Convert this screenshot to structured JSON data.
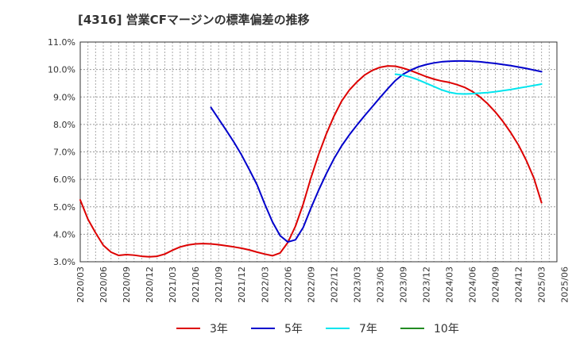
{
  "chart_data": {
    "type": "line",
    "title": "[4316]  営業CFマージンの標準偏差の推移",
    "xlabel": "",
    "ylabel": "",
    "ylim": [
      3.0,
      11.0
    ],
    "yticks": [
      3.0,
      4.0,
      5.0,
      6.0,
      7.0,
      8.0,
      9.0,
      10.0,
      11.0
    ],
    "ytick_labels": [
      "3.0%",
      "4.0%",
      "5.0%",
      "6.0%",
      "7.0%",
      "8.0%",
      "9.0%",
      "10.0%",
      "11.0%"
    ],
    "x_categories": [
      "2020/03",
      "2020/06",
      "2020/09",
      "2020/12",
      "2021/03",
      "2021/06",
      "2021/09",
      "2021/12",
      "2022/03",
      "2022/06",
      "2022/09",
      "2022/12",
      "2023/03",
      "2023/06",
      "2023/09",
      "2023/12",
      "2024/03",
      "2024/06",
      "2024/09",
      "2024/12",
      "2025/03",
      "2025/06"
    ],
    "grid": true,
    "legend_position": "bottom",
    "series": [
      {
        "name": "3年",
        "color": "#dd0000",
        "points": [
          [
            "2020/03",
            5.25
          ],
          [
            "2020/04",
            4.55
          ],
          [
            "2020/05",
            4.05
          ],
          [
            "2020/06",
            3.6
          ],
          [
            "2020/07",
            3.35
          ],
          [
            "2020/08",
            3.23
          ],
          [
            "2020/09",
            3.26
          ],
          [
            "2020/10",
            3.24
          ],
          [
            "2020/11",
            3.2
          ],
          [
            "2020/12",
            3.18
          ],
          [
            "2021/01",
            3.2
          ],
          [
            "2021/02",
            3.28
          ],
          [
            "2021/03",
            3.42
          ],
          [
            "2021/04",
            3.54
          ],
          [
            "2021/05",
            3.61
          ],
          [
            "2021/06",
            3.65
          ],
          [
            "2021/07",
            3.66
          ],
          [
            "2021/08",
            3.65
          ],
          [
            "2021/09",
            3.62
          ],
          [
            "2021/10",
            3.58
          ],
          [
            "2021/11",
            3.54
          ],
          [
            "2021/12",
            3.49
          ],
          [
            "2022/01",
            3.43
          ],
          [
            "2022/02",
            3.35
          ],
          [
            "2022/03",
            3.28
          ],
          [
            "2022/04",
            3.22
          ],
          [
            "2022/05",
            3.32
          ],
          [
            "2022/06",
            3.7
          ],
          [
            "2022/07",
            4.3
          ],
          [
            "2022/08",
            5.1
          ],
          [
            "2022/09",
            6.05
          ],
          [
            "2022/10",
            6.9
          ],
          [
            "2022/11",
            7.65
          ],
          [
            "2022/12",
            8.3
          ],
          [
            "2023/01",
            8.85
          ],
          [
            "2023/02",
            9.25
          ],
          [
            "2023/03",
            9.55
          ],
          [
            "2023/04",
            9.8
          ],
          [
            "2023/05",
            9.97
          ],
          [
            "2023/06",
            10.08
          ],
          [
            "2023/07",
            10.13
          ],
          [
            "2023/08",
            10.12
          ],
          [
            "2023/09",
            10.05
          ],
          [
            "2023/10",
            9.96
          ],
          [
            "2023/11",
            9.85
          ],
          [
            "2023/12",
            9.74
          ],
          [
            "2024/01",
            9.65
          ],
          [
            "2024/02",
            9.58
          ],
          [
            "2024/03",
            9.53
          ],
          [
            "2024/04",
            9.45
          ],
          [
            "2024/05",
            9.35
          ],
          [
            "2024/06",
            9.2
          ],
          [
            "2024/07",
            9.0
          ],
          [
            "2024/08",
            8.75
          ],
          [
            "2024/09",
            8.45
          ],
          [
            "2024/10",
            8.1
          ],
          [
            "2024/11",
            7.7
          ],
          [
            "2024/12",
            7.25
          ],
          [
            "2025/01",
            6.7
          ],
          [
            "2025/02",
            6.05
          ],
          [
            "2025/03",
            5.15
          ]
        ]
      },
      {
        "name": "5年",
        "color": "#0000cc",
        "points": [
          [
            "2021/08",
            8.62
          ],
          [
            "2021/09",
            8.2
          ],
          [
            "2021/10",
            7.78
          ],
          [
            "2021/11",
            7.35
          ],
          [
            "2021/12",
            6.88
          ],
          [
            "2022/01",
            6.35
          ],
          [
            "2022/02",
            5.8
          ],
          [
            "2022/03",
            5.1
          ],
          [
            "2022/04",
            4.45
          ],
          [
            "2022/05",
            3.95
          ],
          [
            "2022/06",
            3.72
          ],
          [
            "2022/07",
            3.8
          ],
          [
            "2022/08",
            4.25
          ],
          [
            "2022/09",
            4.95
          ],
          [
            "2022/10",
            5.6
          ],
          [
            "2022/11",
            6.2
          ],
          [
            "2022/12",
            6.75
          ],
          [
            "2023/01",
            7.22
          ],
          [
            "2023/02",
            7.62
          ],
          [
            "2023/03",
            7.98
          ],
          [
            "2023/04",
            8.32
          ],
          [
            "2023/05",
            8.65
          ],
          [
            "2023/06",
            8.98
          ],
          [
            "2023/07",
            9.3
          ],
          [
            "2023/08",
            9.6
          ],
          [
            "2023/09",
            9.83
          ],
          [
            "2023/10",
            9.98
          ],
          [
            "2023/11",
            10.1
          ],
          [
            "2023/12",
            10.18
          ],
          [
            "2024/01",
            10.24
          ],
          [
            "2024/02",
            10.28
          ],
          [
            "2024/03",
            10.3
          ],
          [
            "2024/04",
            10.31
          ],
          [
            "2024/05",
            10.31
          ],
          [
            "2024/06",
            10.3
          ],
          [
            "2024/07",
            10.28
          ],
          [
            "2024/08",
            10.25
          ],
          [
            "2024/09",
            10.22
          ],
          [
            "2024/10",
            10.18
          ],
          [
            "2024/11",
            10.14
          ],
          [
            "2024/12",
            10.09
          ],
          [
            "2025/01",
            10.04
          ],
          [
            "2025/02",
            9.98
          ],
          [
            "2025/03",
            9.92
          ]
        ]
      },
      {
        "name": "7年",
        "color": "#00e5ee",
        "points": [
          [
            "2023/08",
            9.83
          ],
          [
            "2023/09",
            9.79
          ],
          [
            "2023/10",
            9.72
          ],
          [
            "2023/11",
            9.62
          ],
          [
            "2023/12",
            9.5
          ],
          [
            "2024/01",
            9.38
          ],
          [
            "2024/02",
            9.26
          ],
          [
            "2024/03",
            9.17
          ],
          [
            "2024/04",
            9.12
          ],
          [
            "2024/05",
            9.11
          ],
          [
            "2024/06",
            9.12
          ],
          [
            "2024/07",
            9.14
          ],
          [
            "2024/08",
            9.16
          ],
          [
            "2024/09",
            9.19
          ],
          [
            "2024/10",
            9.23
          ],
          [
            "2024/11",
            9.27
          ],
          [
            "2024/12",
            9.32
          ],
          [
            "2025/01",
            9.37
          ],
          [
            "2025/02",
            9.42
          ],
          [
            "2025/03",
            9.47
          ]
        ]
      },
      {
        "name": "10年",
        "color": "#228b22",
        "points": []
      }
    ]
  }
}
